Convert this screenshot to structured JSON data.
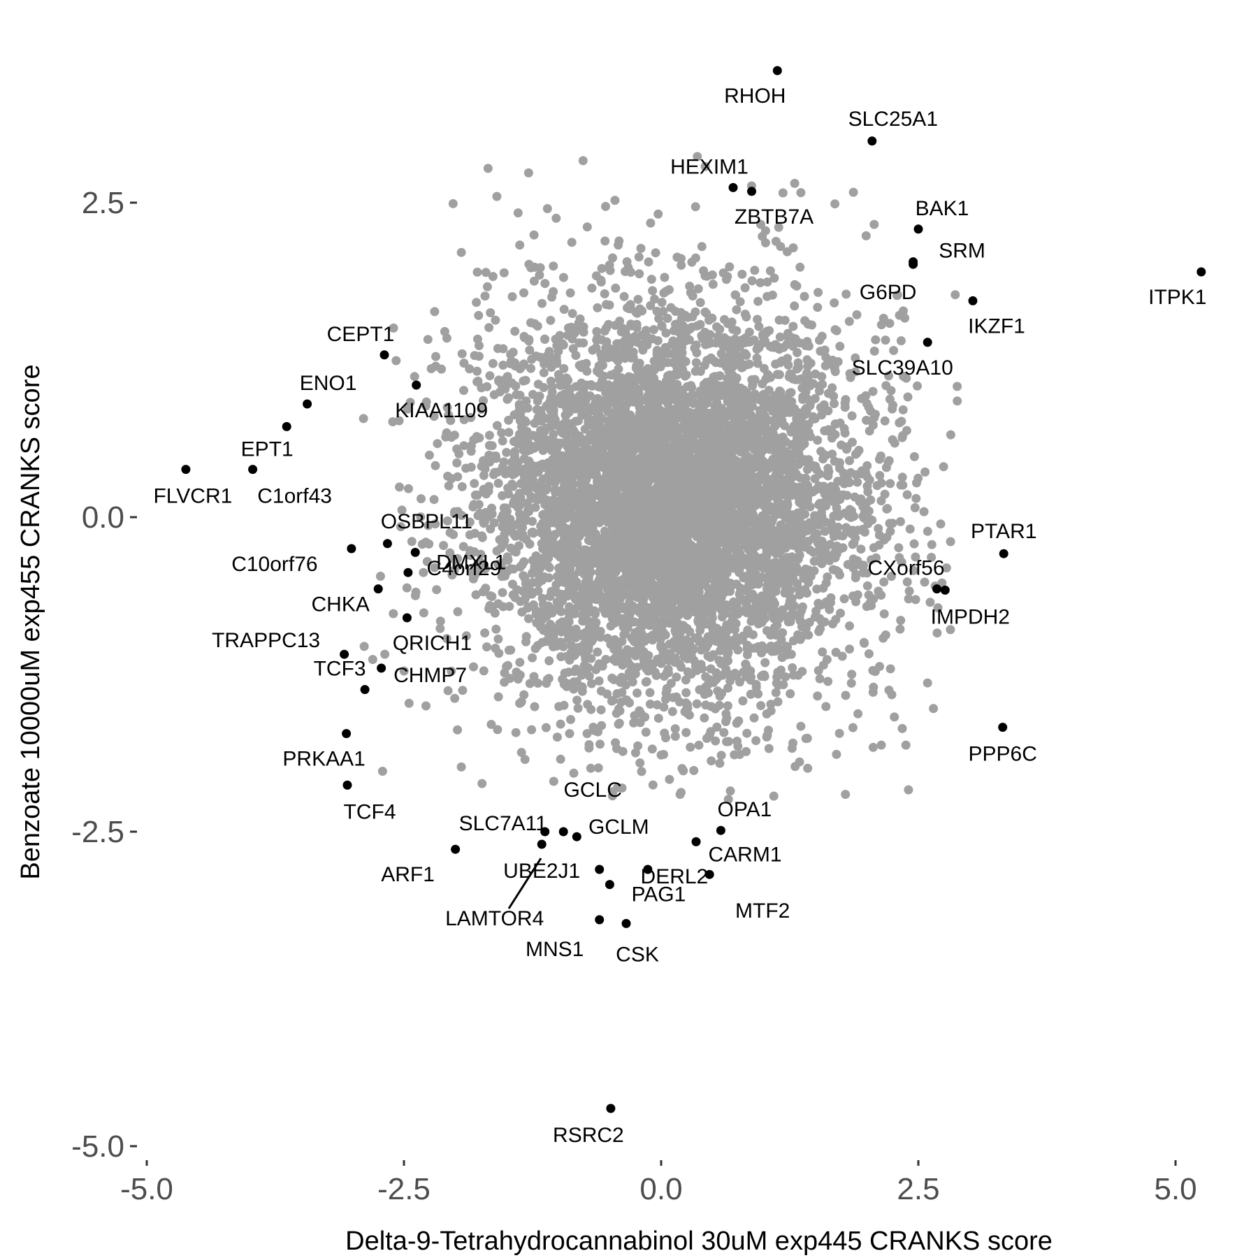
{
  "chart_data": {
    "type": "scatter",
    "xlabel": "Delta-9-Tetrahydrocannabinol 30uM exp445 CRANKS score",
    "ylabel": "Benzoate 10000uM exp455 CRANKS score",
    "xlim": [
      -5.2,
      5.4
    ],
    "ylim": [
      -5.1,
      3.9
    ],
    "x_ticks": [
      -5.0,
      -2.5,
      0.0,
      2.5,
      5.0
    ],
    "x_tick_labels": [
      "-5.0",
      "-2.5",
      "0.0",
      "2.5",
      "5.0"
    ],
    "y_ticks": [
      -5.0,
      -2.5,
      0.0,
      2.5
    ],
    "y_tick_labels": [
      "-5.0",
      "-2.5",
      "0.0",
      "2.5"
    ],
    "grid": false,
    "background_color": "#ffffff",
    "background_points": {
      "description": "dense cloud of unlabeled genes",
      "color": "#a0a0a0",
      "approx_count": 6000,
      "center": [
        0.1,
        0.1
      ],
      "sd": [
        0.9,
        0.75
      ]
    },
    "highlight_color": "#000000",
    "labeled_points": [
      {
        "label": "RHOH",
        "x": 1.13,
        "y": 3.55
      },
      {
        "label": "SLC25A1",
        "x": 2.05,
        "y": 2.99
      },
      {
        "label": "HEXIM1",
        "x": 0.7,
        "y": 2.62
      },
      {
        "label": "ZBTB7A",
        "x": 0.88,
        "y": 2.59
      },
      {
        "label": "BAK1",
        "x": 2.5,
        "y": 2.29
      },
      {
        "label": "SRM",
        "x": 2.45,
        "y": 2.03
      },
      {
        "label": "G6PD",
        "x": 2.45,
        "y": 2.01
      },
      {
        "label": "ITPK1",
        "x": 5.25,
        "y": 1.95
      },
      {
        "label": "IKZF1",
        "x": 3.03,
        "y": 1.72
      },
      {
        "label": "SLC39A10",
        "x": 2.59,
        "y": 1.39
      },
      {
        "label": "CEPT1",
        "x": -2.69,
        "y": 1.29
      },
      {
        "label": "KIAA1109",
        "x": -2.38,
        "y": 1.05
      },
      {
        "label": "ENO1",
        "x": -3.44,
        "y": 0.9
      },
      {
        "label": "EPT1",
        "x": -3.64,
        "y": 0.72
      },
      {
        "label": "FLVCR1",
        "x": -4.62,
        "y": 0.38
      },
      {
        "label": "C1orf43",
        "x": -3.97,
        "y": 0.38
      },
      {
        "label": "OSBPL11",
        "x": -2.66,
        "y": -0.21
      },
      {
        "label": "C10orf76",
        "x": -3.01,
        "y": -0.25
      },
      {
        "label": "DMXL1",
        "x": -2.39,
        "y": -0.28
      },
      {
        "label": "C4orf29",
        "x": -2.46,
        "y": -0.44
      },
      {
        "label": "CHKA",
        "x": -2.75,
        "y": -0.57
      },
      {
        "label": "QRICH1",
        "x": -2.47,
        "y": -0.8
      },
      {
        "label": "TRAPPC13",
        "x": -3.08,
        "y": -1.09
      },
      {
        "label": "CHMP7",
        "x": -2.72,
        "y": -1.2
      },
      {
        "label": "TCF3",
        "x": -2.88,
        "y": -1.37
      },
      {
        "label": "PRKAA1",
        "x": -3.06,
        "y": -1.72
      },
      {
        "label": "TCF4",
        "x": -3.05,
        "y": -2.13
      },
      {
        "label": "PTAR1",
        "x": 3.33,
        "y": -0.29
      },
      {
        "label": "CXorf56",
        "x": 2.68,
        "y": -0.57
      },
      {
        "label": "IMPDH2",
        "x": 2.76,
        "y": -0.58
      },
      {
        "label": "PPP6C",
        "x": 3.32,
        "y": -1.67
      },
      {
        "label": "GCLC",
        "x": -0.95,
        "y": -2.5
      },
      {
        "label": "SLC7A11",
        "x": -1.13,
        "y": -2.5
      },
      {
        "label": "GCLM",
        "x": -0.82,
        "y": -2.54
      },
      {
        "label": "UBE2J1",
        "x": -1.16,
        "y": -2.6
      },
      {
        "label": "ARF1",
        "x": -2.0,
        "y": -2.64
      },
      {
        "label": "OPA1",
        "x": 0.58,
        "y": -2.49
      },
      {
        "label": "CARM1",
        "x": 0.34,
        "y": -2.58
      },
      {
        "label": "DERL2",
        "x": -0.13,
        "y": -2.8
      },
      {
        "label": "MTF2",
        "x": 0.47,
        "y": -2.84
      },
      {
        "label": "LAMTOR4",
        "x": -0.6,
        "y": -2.8
      },
      {
        "label": "MNS1",
        "x": -0.6,
        "y": -3.2
      },
      {
        "label": "PAG1",
        "x": -0.5,
        "y": -2.92
      },
      {
        "label": "CSK",
        "x": -0.34,
        "y": -3.23
      },
      {
        "label": "RSRC2",
        "x": -0.49,
        "y": -4.7
      }
    ]
  }
}
